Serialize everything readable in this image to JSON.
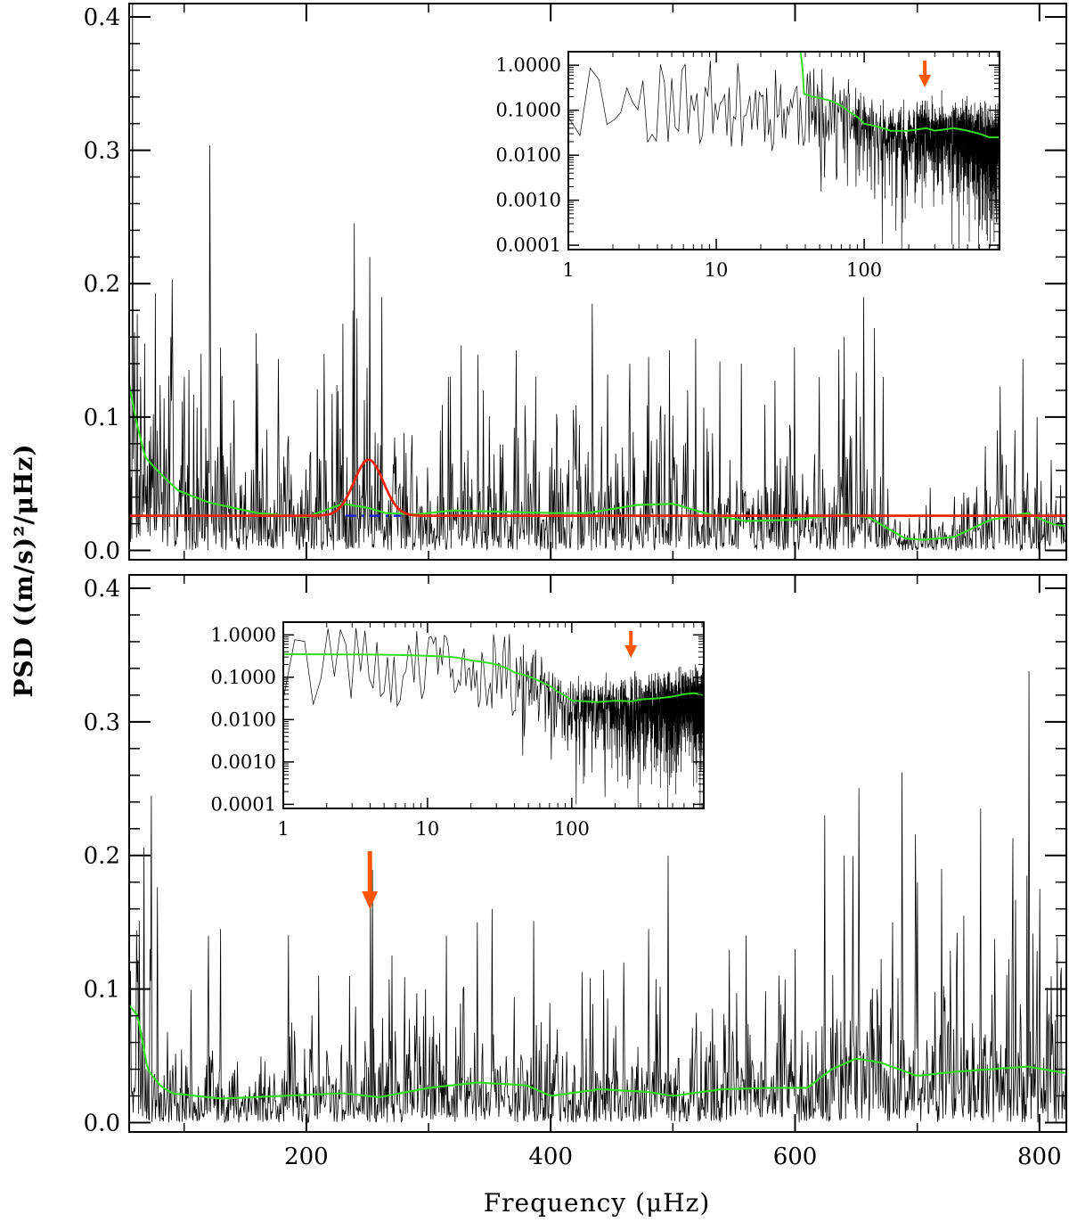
{
  "figure": {
    "ylabel": "PSD ((m/s)²/μHz)",
    "xlabel": "Frequency (μHz)"
  },
  "chart_data": [
    {
      "id": "top-main",
      "type": "line",
      "xlim": [
        55,
        822
      ],
      "ylim": [
        -0.007,
        0.41
      ],
      "yticks": [
        0.0,
        0.1,
        0.2,
        0.3,
        0.4
      ],
      "ytick_labels": [
        "0.0",
        "0.1",
        "0.2",
        "0.3",
        "0.4"
      ],
      "xticks": [
        200,
        400,
        600,
        800
      ],
      "series": [
        {
          "name": "psd",
          "color": "#000000",
          "noise_seed": 7,
          "base_level": 0.025,
          "tall_peaks": [
            [
              230,
              0.17
            ],
            [
              238,
              0.18
            ],
            [
              252,
              0.22
            ],
            [
              262,
              0.19
            ],
            [
              318,
              0.13
            ],
            [
              345,
              0.12
            ],
            [
              372,
              0.15
            ],
            [
              388,
              0.13
            ],
            [
              434,
              0.185
            ],
            [
              465,
              0.14
            ],
            [
              480,
              0.145
            ],
            [
              497,
              0.15
            ],
            [
              512,
              0.12
            ],
            [
              556,
              0.14
            ],
            [
              620,
              0.13
            ],
            [
              640,
              0.16
            ],
            [
              656,
              0.19
            ],
            [
              672,
              0.13
            ],
            [
              130,
              0.152
            ],
            [
              160,
              0.14
            ],
            [
              100,
              0.13
            ],
            [
              780,
              0.09
            ],
            [
              798,
              0.1
            ]
          ]
        },
        {
          "name": "smoothed-background",
          "color": "#33dd22",
          "x": [
            55,
            60,
            68,
            80,
            95,
            120,
            160,
            200,
            230,
            250,
            265,
            290,
            320,
            360,
            400,
            430,
            470,
            500,
            530,
            560,
            600,
            640,
            660,
            690,
            705,
            730,
            760,
            790,
            810,
            822
          ],
          "y": [
            0.125,
            0.1,
            0.07,
            0.058,
            0.045,
            0.036,
            0.028,
            0.025,
            0.035,
            0.032,
            0.028,
            0.027,
            0.03,
            0.029,
            0.028,
            0.028,
            0.034,
            0.035,
            0.027,
            0.022,
            0.023,
            0.027,
            0.025,
            0.009,
            0.008,
            0.01,
            0.023,
            0.028,
            0.02,
            0.018
          ]
        },
        {
          "name": "gaussian-fit",
          "color": "#ee2211",
          "background": 0.026,
          "amplitude": 0.042,
          "center": 251,
          "sigma": 12
        },
        {
          "name": "fit-background-dash",
          "color": "#2222cc",
          "x": [
            232,
            278
          ],
          "y": [
            0.026,
            0.026
          ]
        }
      ]
    },
    {
      "id": "top-inset",
      "type": "line",
      "xscale": "log",
      "yscale": "log",
      "xlim": [
        1,
        822
      ],
      "ylim": [
        8e-05,
        2.0
      ],
      "yticks": [
        1.0,
        0.1,
        0.01,
        0.001,
        0.0001
      ],
      "ytick_labels": [
        "1.0000",
        "0.1000",
        "0.0100",
        "0.0010",
        "0.0001"
      ],
      "xticks": [
        1,
        10,
        100
      ],
      "xtick_labels": [
        "1",
        "10",
        "100"
      ],
      "series": [
        {
          "name": "psd",
          "color": "#000000",
          "noise_seed": 11
        },
        {
          "name": "smoothed-background",
          "color": "#33dd22",
          "x": [
            37,
            39,
            45,
            60,
            80,
            100,
            150,
            200,
            260,
            300,
            400,
            500,
            600,
            700,
            822
          ],
          "y": [
            2.0,
            0.23,
            0.2,
            0.16,
            0.09,
            0.05,
            0.035,
            0.035,
            0.04,
            0.035,
            0.04,
            0.035,
            0.03,
            0.025,
            0.025
          ]
        }
      ],
      "annotations": [
        {
          "type": "arrow",
          "x": 257,
          "color": "#ff5500"
        }
      ]
    },
    {
      "id": "bottom-main",
      "type": "line",
      "xlim": [
        55,
        822
      ],
      "ylim": [
        -0.007,
        0.41
      ],
      "yticks": [
        0.0,
        0.1,
        0.2,
        0.3,
        0.4
      ],
      "ytick_labels": [
        "0.0",
        "0.1",
        "0.2",
        "0.3",
        "0.4"
      ],
      "xticks": [
        200,
        400,
        600,
        800
      ],
      "xtick_labels": [
        "200",
        "400",
        "600",
        "800"
      ],
      "series": [
        {
          "name": "psd",
          "color": "#000000",
          "noise_seed": 23,
          "base_level": 0.028,
          "tall_peaks": [
            [
              72,
              0.13
            ],
            [
              120,
              0.14
            ],
            [
              130,
              0.145
            ],
            [
              210,
              0.11
            ],
            [
              340,
              0.15
            ],
            [
              352,
              0.16
            ],
            [
              480,
              0.145
            ],
            [
              560,
              0.14
            ],
            [
              624,
              0.23
            ],
            [
              640,
              0.2
            ],
            [
              700,
              0.18
            ],
            [
              720,
              0.19
            ],
            [
              738,
              0.155
            ],
            [
              752,
              0.235
            ],
            [
              790,
              0.185
            ],
            [
              800,
              0.175
            ],
            [
              270,
              0.125
            ],
            [
              460,
              0.12
            ],
            [
              600,
              0.13
            ],
            [
              680,
              0.15
            ]
          ]
        },
        {
          "name": "smoothed-background",
          "color": "#33dd22",
          "x": [
            55,
            62,
            70,
            80,
            90,
            130,
            180,
            230,
            260,
            300,
            340,
            380,
            400,
            440,
            480,
            500,
            540,
            580,
            610,
            630,
            650,
            670,
            700,
            730,
            760,
            790,
            822
          ],
          "y": [
            0.088,
            0.08,
            0.04,
            0.028,
            0.022,
            0.018,
            0.02,
            0.022,
            0.019,
            0.026,
            0.03,
            0.028,
            0.02,
            0.025,
            0.023,
            0.02,
            0.025,
            0.026,
            0.026,
            0.04,
            0.048,
            0.045,
            0.035,
            0.038,
            0.04,
            0.042,
            0.037
          ]
        }
      ],
      "annotations": [
        {
          "type": "arrow",
          "x": 252,
          "color": "#ff5500"
        }
      ]
    },
    {
      "id": "bottom-inset",
      "type": "line",
      "xscale": "log",
      "yscale": "log",
      "xlim": [
        1,
        822
      ],
      "ylim": [
        8e-05,
        2.0
      ],
      "yticks": [
        1.0,
        0.1,
        0.01,
        0.001,
        0.0001
      ],
      "ytick_labels": [
        "1.0000",
        "0.1000",
        "0.0100",
        "0.0010",
        "0.0001"
      ],
      "xticks": [
        1,
        10,
        100
      ],
      "xtick_labels": [
        "1",
        "10",
        "100"
      ],
      "series": [
        {
          "name": "psd",
          "color": "#000000",
          "noise_seed": 31
        },
        {
          "name": "smoothed-background",
          "color": "#33dd22",
          "x": [
            1,
            5,
            10,
            15,
            20,
            30,
            40,
            60,
            80,
            100,
            150,
            200,
            260,
            300,
            400,
            500,
            600,
            700,
            822
          ],
          "y": [
            0.35,
            0.34,
            0.32,
            0.3,
            0.25,
            0.2,
            0.13,
            0.08,
            0.045,
            0.028,
            0.026,
            0.028,
            0.027,
            0.03,
            0.032,
            0.035,
            0.04,
            0.042,
            0.038
          ]
        }
      ],
      "annotations": [
        {
          "type": "arrow",
          "x": 257,
          "color": "#ff5500"
        }
      ]
    }
  ]
}
